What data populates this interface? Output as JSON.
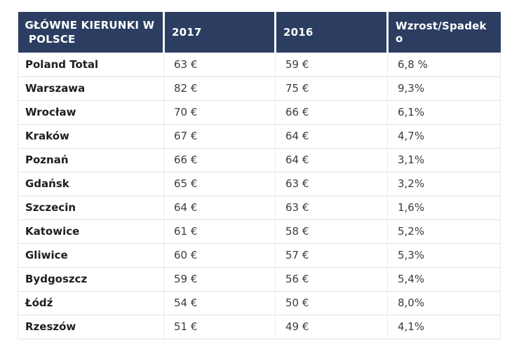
{
  "colors": {
    "header_bg": "#2b3e61",
    "header_text": "#ffffff",
    "row_line": "#e3e3e3",
    "city_text": "#1b1e23",
    "value_text": "#3c3c3c"
  },
  "header": {
    "col1_line1": "GŁÓWNE KIERUNKI W",
    "col1_line2": " POLSCE",
    "col2": "2017",
    "col3": "2016",
    "col4": "Wzrost/Spadek o"
  },
  "rows": [
    {
      "city": "Poland Total",
      "v2017": "63 €",
      "v2016": "59 €",
      "change": "6,8 %"
    },
    {
      "city": "Warszawa",
      "v2017": "82 €",
      "v2016": "75 €",
      "change": "9,3%"
    },
    {
      "city": "Wrocław",
      "v2017": "70 €",
      "v2016": "66 €",
      "change": "6,1%"
    },
    {
      "city": "Kraków",
      "v2017": "67 €",
      "v2016": "64 €",
      "change": "4,7%"
    },
    {
      "city": "Poznań",
      "v2017": "66 €",
      "v2016": "64 €",
      "change": "3,1%"
    },
    {
      "city": "Gdańsk",
      "v2017": "65 €",
      "v2016": "63 €",
      "change": "3,2%"
    },
    {
      "city": "Szczecin",
      "v2017": "64 €",
      "v2016": "63 €",
      "change": "1,6%"
    },
    {
      "city": "Katowice",
      "v2017": "61 €",
      "v2016": "58 €",
      "change": "5,2%"
    },
    {
      "city": "Gliwice",
      "v2017": "60 €",
      "v2016": "57 €",
      "change": "5,3%"
    },
    {
      "city": "Bydgoszcz",
      "v2017": "59 €",
      "v2016": "56 €",
      "change": "5,4%"
    },
    {
      "city": "Łódź",
      "v2017": "54 €",
      "v2016": "50 €",
      "change": "8,0%"
    },
    {
      "city": "Rzeszów",
      "v2017": "51 €",
      "v2016": "49 €",
      "change": "4,1%"
    }
  ],
  "chart_data": {
    "type": "table",
    "title": "GŁÓWNE KIERUNKI W POLSCE",
    "columns": [
      "GŁÓWNE KIERUNKI W POLSCE",
      "2017",
      "2016",
      "Wzrost/Spadek o"
    ],
    "categories": [
      "Poland Total",
      "Warszawa",
      "Wrocław",
      "Kraków",
      "Poznań",
      "Gdańsk",
      "Szczecin",
      "Katowice",
      "Gliwice",
      "Bydgoszcz",
      "Łódź",
      "Rzeszów"
    ],
    "series": [
      {
        "name": "2017",
        "unit": "€",
        "values": [
          63,
          82,
          70,
          67,
          66,
          65,
          64,
          61,
          60,
          59,
          54,
          51
        ]
      },
      {
        "name": "2016",
        "unit": "€",
        "values": [
          59,
          75,
          66,
          64,
          64,
          63,
          63,
          58,
          57,
          56,
          50,
          49
        ]
      },
      {
        "name": "Wzrost/Spadek o",
        "unit": "%",
        "values": [
          6.8,
          9.3,
          6.1,
          4.7,
          3.1,
          3.2,
          1.6,
          5.2,
          5.3,
          5.4,
          8.0,
          4.1
        ]
      }
    ]
  }
}
